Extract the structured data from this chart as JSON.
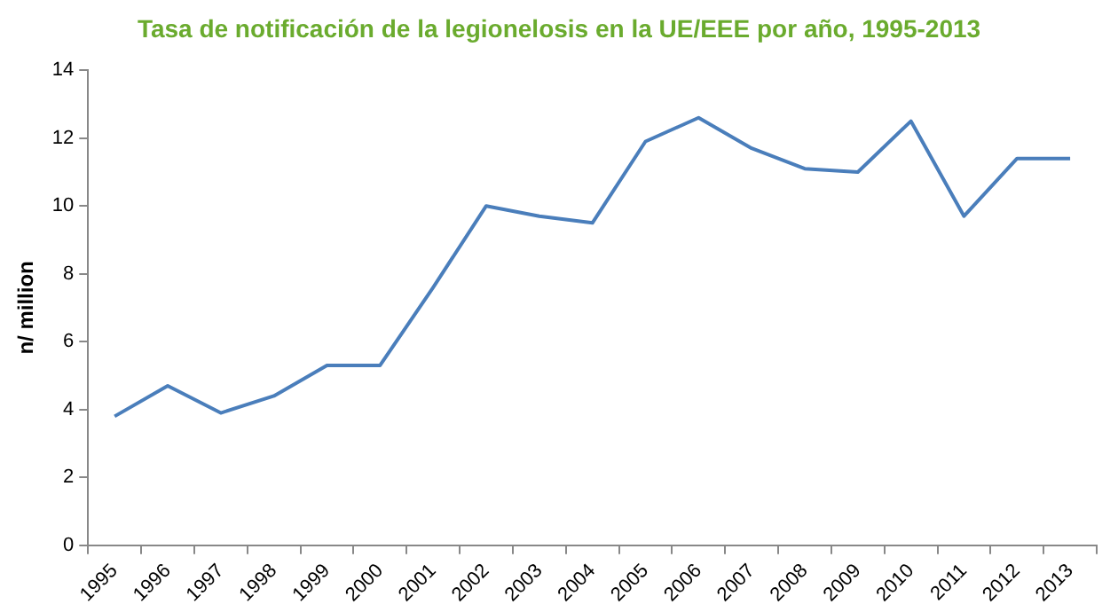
{
  "chart_data": {
    "type": "line",
    "title": "Tasa de notificación de la legionelosis en la UE/EEE por año, 1995-2013",
    "ylabel": "n/ million",
    "categories": [
      "1995",
      "1996",
      "1997",
      "1998",
      "1999",
      "2000",
      "2001",
      "2002",
      "2003",
      "2004",
      "2005",
      "2006",
      "2007",
      "2008",
      "2009",
      "2010",
      "2011",
      "2012",
      "2013"
    ],
    "series": [
      {
        "color": "#4a7ebb",
        "values": [
          3.8,
          4.7,
          3.9,
          4.4,
          5.3,
          5.3,
          7.6,
          10.0,
          9.7,
          9.5,
          11.9,
          12.6,
          11.7,
          11.1,
          11.0,
          12.5,
          9.7,
          11.4,
          11.4
        ]
      }
    ],
    "ylim": [
      0,
      14
    ],
    "yticks": [
      0,
      2,
      4,
      6,
      8,
      10,
      12,
      14
    ],
    "grid": false,
    "legend": false,
    "marker": "none",
    "line_style": "solid"
  }
}
